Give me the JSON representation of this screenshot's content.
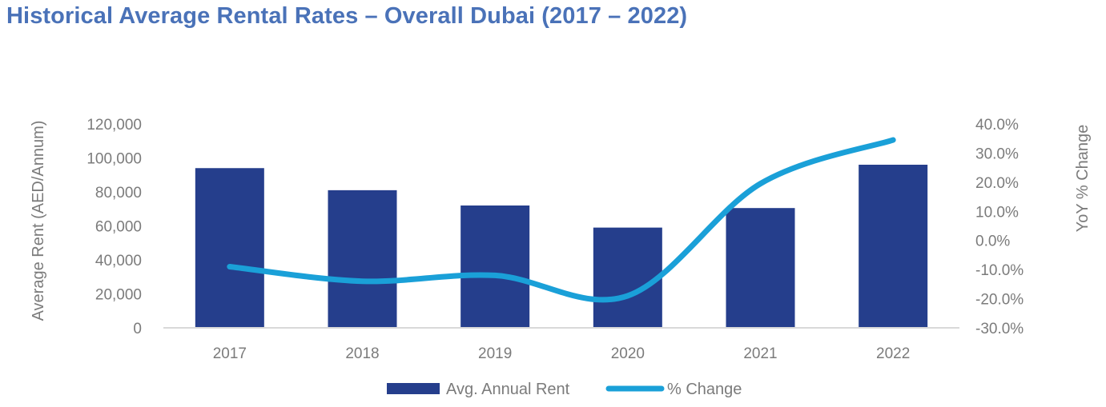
{
  "chart_data": {
    "type": "bar+line",
    "title": "Historical Average Rental Rates – Overall Dubai (2017 – 2022)",
    "categories": [
      "2017",
      "2018",
      "2019",
      "2020",
      "2021",
      "2022"
    ],
    "series": [
      {
        "name": "Avg. Annual Rent",
        "kind": "bar",
        "axis": "left",
        "color": "#253e8c",
        "values": [
          94000,
          81000,
          72000,
          59000,
          70500,
          96000
        ]
      },
      {
        "name": "% Change",
        "kind": "line",
        "axis": "right",
        "color": "#1aa0d8",
        "values": [
          -9.0,
          -14.0,
          -12.0,
          -19.0,
          19.5,
          34.5
        ]
      }
    ],
    "ylabel": "Average Rent (AED/Annum)",
    "ylabel_right": "YoY % Change",
    "ylim": [
      0,
      120000
    ],
    "ylim_right": [
      -30,
      40
    ],
    "yticks": [
      "0",
      "20,000",
      "40,000",
      "60,000",
      "80,000",
      "100,000",
      "120,000"
    ],
    "yticks_right": [
      "-30.0%",
      "-20.0%",
      "-10.0%",
      "0.0%",
      "10.0%",
      "20.0%",
      "30.0%",
      "40.0%"
    ],
    "legend_position": "bottom-center",
    "grid": false
  }
}
